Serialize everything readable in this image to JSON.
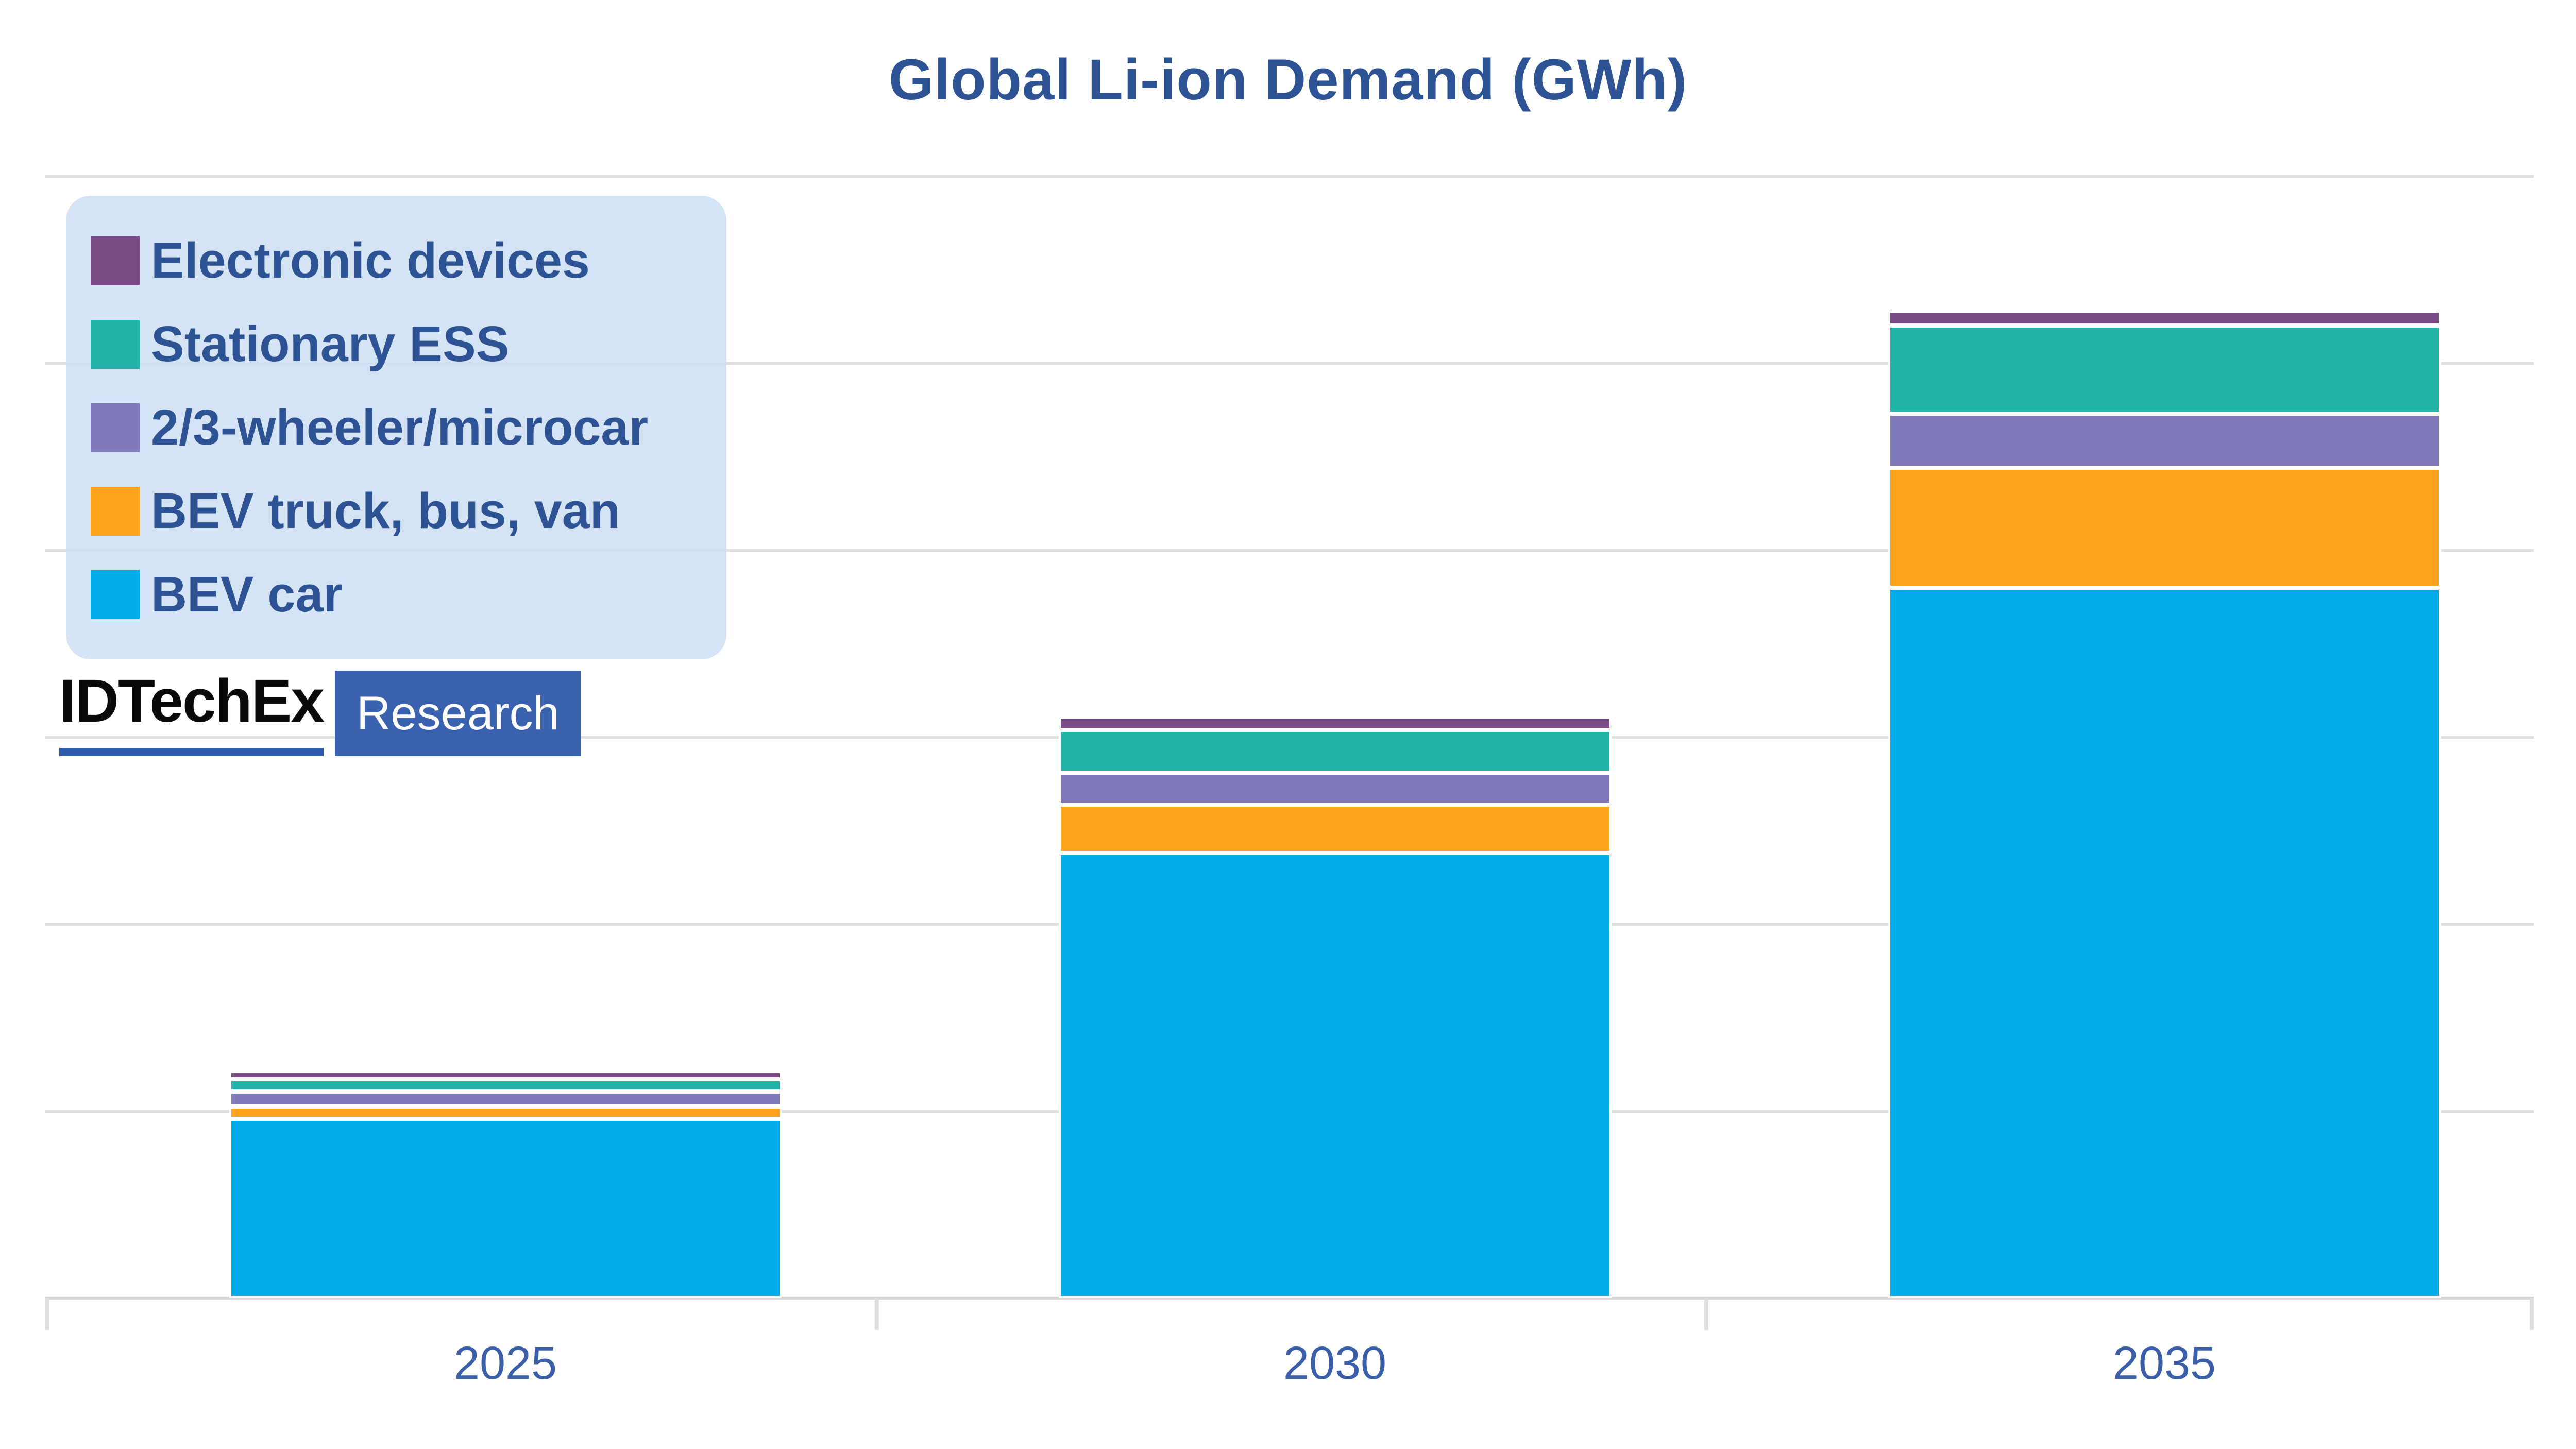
{
  "chart_data": {
    "type": "bar",
    "stacked": true,
    "title": "Global Li-ion Demand (GWh)",
    "categories": [
      "2025",
      "2030",
      "2035"
    ],
    "series": [
      {
        "name": "BEV car",
        "color": "#00ADE9",
        "values": [
          480,
          1190,
          1900
        ]
      },
      {
        "name": "BEV truck, bus, van",
        "color": "#FFA41E",
        "values": [
          33,
          130,
          320
        ]
      },
      {
        "name": "2/3-wheeler/microcar",
        "color": "#7E79B8",
        "values": [
          40,
          85,
          145
        ]
      },
      {
        "name": "Stationary ESS",
        "color": "#21B2A9",
        "values": [
          33,
          115,
          235
        ]
      },
      {
        "name": "Electronic devices",
        "color": "#7C4A86",
        "values": [
          20,
          35,
          40
        ]
      }
    ],
    "legend_order_top_to_bottom": [
      "Electronic devices",
      "Stationary ESS",
      "2/3-wheeler/microcar",
      "BEV truck, bus, van",
      "BEV car"
    ],
    "xlabel": "",
    "ylabel": "",
    "y_axis": {
      "min": 0,
      "max": 3300,
      "gridline_step": 500,
      "tick_labels_shown": false
    },
    "grid": "horizontal",
    "legend_position": "upper-left"
  },
  "branding": {
    "brand": "IDTechEx",
    "sub": "Research"
  },
  "style_colors": {
    "title_text": "#2E5395",
    "axis_label_text": "#3A5EA8",
    "legend_text": "#2E5395",
    "legend_background": "#CFE0F3",
    "gridline": "#DEDEDE",
    "axis_line": "#D6D6D6",
    "logo_underline": "#2F5AA9",
    "research_box": "#3A62AE"
  }
}
